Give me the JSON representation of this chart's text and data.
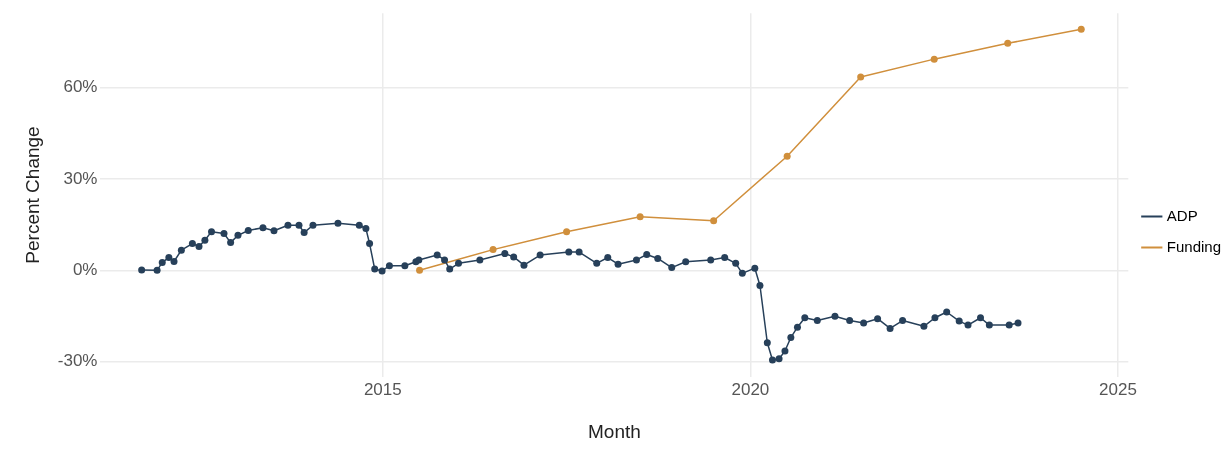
{
  "chart_data": {
    "type": "line",
    "xlabel": "Month",
    "ylabel": "Percent Change",
    "xlim": [
      2011.16,
      2025.14
    ],
    "ylim": [
      -35,
      84.5
    ],
    "xticks": [
      2015,
      2020,
      2025
    ],
    "yticks": [
      {
        "value": -30,
        "label": "-30%"
      },
      {
        "value": 0,
        "label": "0%"
      },
      {
        "value": 30,
        "label": "30%"
      },
      {
        "value": 60,
        "label": "60%"
      }
    ],
    "grid": true,
    "legend": "right",
    "marker": "circle",
    "line_style": "solid",
    "series": [
      {
        "name": "ADP",
        "color": "#27405a",
        "x": [
          2011.72,
          2011.93,
          2012.0,
          2012.09,
          2012.16,
          2012.26,
          2012.41,
          2012.5,
          2012.58,
          2012.67,
          2012.84,
          2012.93,
          2013.03,
          2013.17,
          2013.37,
          2013.52,
          2013.71,
          2013.86,
          2013.93,
          2014.05,
          2014.39,
          2014.68,
          2014.77,
          2014.82,
          2014.89,
          2014.99,
          2015.09,
          2015.3,
          2015.45,
          2015.49,
          2015.74,
          2015.84,
          2015.91,
          2016.03,
          2016.32,
          2016.66,
          2016.78,
          2016.92,
          2017.14,
          2017.53,
          2017.67,
          2017.91,
          2018.06,
          2018.2,
          2018.45,
          2018.59,
          2018.74,
          2018.93,
          2019.12,
          2019.46,
          2019.65,
          2019.8,
          2019.89,
          2020.06,
          2020.13,
          2020.23,
          2020.3,
          2020.39,
          2020.47,
          2020.55,
          2020.64,
          2020.74,
          2020.91,
          2021.15,
          2021.35,
          2021.54,
          2021.73,
          2021.9,
          2022.07,
          2022.36,
          2022.51,
          2022.67,
          2022.84,
          2022.96,
          2023.13,
          2023.25,
          2023.52,
          2023.64
        ],
        "values": [
          0.1,
          0,
          2.6,
          4.2,
          2.9,
          6.6,
          8.8,
          7.8,
          9.9,
          12.7,
          12.1,
          9.1,
          11.5,
          13.1,
          14.0,
          13.0,
          14.8,
          14.8,
          12.4,
          14.8,
          15.5,
          14.8,
          13.7,
          8.8,
          0.4,
          -0.2,
          1.5,
          1.5,
          2.8,
          3.4,
          5.0,
          3.4,
          0.4,
          2.3,
          3.4,
          5.5,
          4.4,
          1.7,
          5.0,
          6.0,
          6.0,
          2.3,
          4.2,
          2.0,
          3.4,
          5.2,
          3.9,
          0.9,
          2.8,
          3.4,
          4.2,
          2.3,
          -1.0,
          0.7,
          -5.0,
          -23.8,
          -29.5,
          -29.1,
          -26.5,
          -22.1,
          -18.7,
          -15.6,
          -16.5,
          -15.1,
          -16.5,
          -17.3,
          -15.9,
          -19.1,
          -16.5,
          -18.4,
          -15.6,
          -13.7,
          -16.7,
          -18.0,
          -15.6,
          -18.0,
          -18.0,
          -17.3
        ]
      },
      {
        "name": "Funding",
        "color": "#d08f3c",
        "x": [
          2015.5,
          2016.5,
          2017.5,
          2018.5,
          2019.5,
          2020.5,
          2021.5,
          2022.5,
          2023.5,
          2024.5
        ],
        "values": [
          0,
          6.8,
          12.7,
          17.6,
          16.3,
          37.5,
          63.5,
          69.4,
          74.6,
          79.2
        ]
      }
    ]
  }
}
